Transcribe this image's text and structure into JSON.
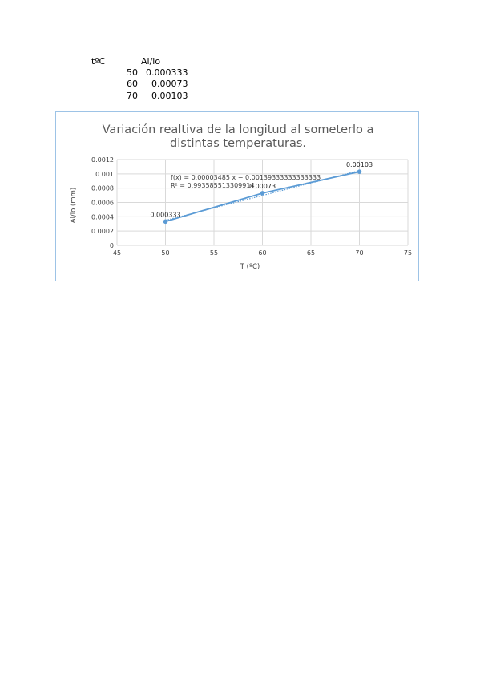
{
  "table": {
    "headers": [
      "tºC",
      "Al/lo"
    ],
    "rows": [
      [
        "50",
        "0.000333"
      ],
      [
        "60",
        "0.00073"
      ],
      [
        "70",
        "0.00103"
      ]
    ]
  },
  "chart_data": {
    "type": "scatter",
    "title_line1": "Variación realtiva de la longitud al someterlo a",
    "title_line2": "distintas temperaturas.",
    "xlabel": "T (ºC)",
    "ylabel": "Al/lo (mm)",
    "xlim": [
      45,
      75
    ],
    "ylim": [
      0,
      0.0012
    ],
    "x_ticks": [
      "45",
      "50",
      "55",
      "60",
      "65",
      "70",
      "75"
    ],
    "y_ticks": [
      "0",
      "0.0002",
      "0.0004",
      "0.0006",
      "0.0008",
      "0.001",
      "0.0012"
    ],
    "grid": true,
    "series": [
      {
        "x": [
          50,
          60,
          70
        ],
        "y": [
          0.000333,
          0.00073,
          0.00103
        ],
        "data_labels": [
          "0.000333",
          "0.00073",
          "0.00103"
        ],
        "color": "#5b9bd5"
      }
    ],
    "trendline": {
      "type": "linear",
      "slope": 3.485e-05,
      "intercept": -0.00139333333333333,
      "equation": "f(x) = 0.00003485 x − 0.00139333333333333",
      "r2": "R² = 0.993585513309914",
      "color": "#5b9bd5",
      "style": "dotted"
    }
  }
}
